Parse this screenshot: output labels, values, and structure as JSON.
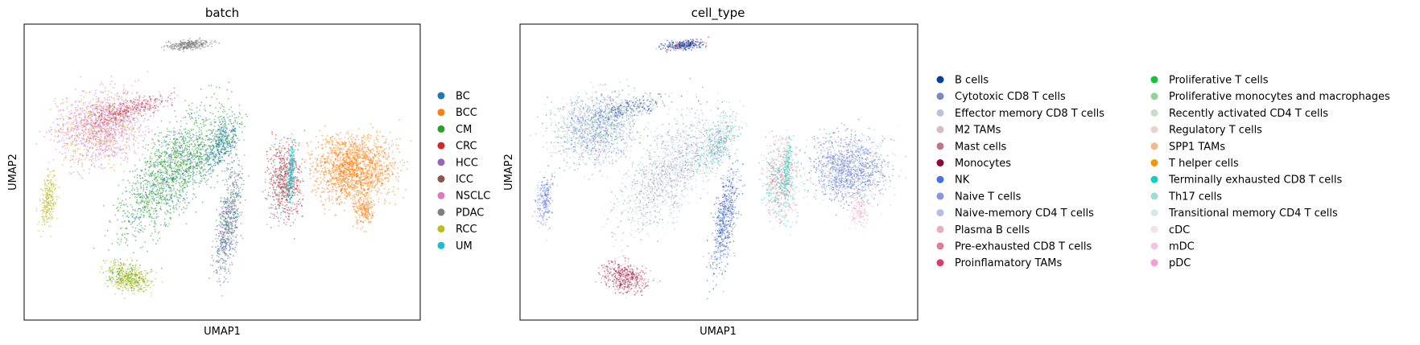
{
  "chart_data": [
    {
      "type": "scatter",
      "title": "batch",
      "xlabel": "UMAP1",
      "ylabel": "UMAP2",
      "grid": false,
      "ticks": false,
      "legend_position": "right",
      "series": [
        {
          "name": "BC",
          "color": "#1f77b4"
        },
        {
          "name": "BCC",
          "color": "#ff7f0e"
        },
        {
          "name": "CM",
          "color": "#2ca02c"
        },
        {
          "name": "CRC",
          "color": "#d62728"
        },
        {
          "name": "HCC",
          "color": "#9467bd"
        },
        {
          "name": "ICC",
          "color": "#8c564b"
        },
        {
          "name": "NSCLC",
          "color": "#e377c2"
        },
        {
          "name": "PDAC",
          "color": "#7f7f7f"
        },
        {
          "name": "RCC",
          "color": "#bcbd22"
        },
        {
          "name": "UM",
          "color": "#17becf"
        }
      ]
    },
    {
      "type": "scatter",
      "title": "cell_type",
      "xlabel": "UMAP1",
      "ylabel": "UMAP2",
      "grid": false,
      "ticks": false,
      "legend_position": "right",
      "series": [
        {
          "name": "B cells",
          "color": "#023fa5"
        },
        {
          "name": "Cytotoxic CD8 T cells",
          "color": "#7d87b9"
        },
        {
          "name": "Effector memory CD8 T cells",
          "color": "#bec1d4"
        },
        {
          "name": "M2 TAMs",
          "color": "#d6bcc0"
        },
        {
          "name": "Mast cells",
          "color": "#bb7784"
        },
        {
          "name": "Monocytes",
          "color": "#8e063b"
        },
        {
          "name": "NK",
          "color": "#4a6fe3"
        },
        {
          "name": "Naive T cells",
          "color": "#8595e1"
        },
        {
          "name": "Naive-memory CD4 T cells",
          "color": "#b5bbe3"
        },
        {
          "name": "Plasma B cells",
          "color": "#e6afb9"
        },
        {
          "name": "Pre-exhausted CD8 T cells",
          "color": "#e07b91"
        },
        {
          "name": "Proinflamatory TAMs",
          "color": "#d33f6a"
        },
        {
          "name": "Proliferative T cells",
          "color": "#11c638"
        },
        {
          "name": "Proliferative monocytes and macrophages",
          "color": "#8dd593"
        },
        {
          "name": "Recently activated CD4 T cells",
          "color": "#c6dec7"
        },
        {
          "name": "Regulatory T cells",
          "color": "#ead3c6"
        },
        {
          "name": "SPP1 TAMs",
          "color": "#f0b98d"
        },
        {
          "name": "T helper cells",
          "color": "#ef9708"
        },
        {
          "name": "Terminally exhausted CD8 T cells",
          "color": "#0fcfc0"
        },
        {
          "name": "Th17 cells",
          "color": "#9cded6"
        },
        {
          "name": "Transitional memory CD4 T cells",
          "color": "#d5eae7"
        },
        {
          "name": "cDC",
          "color": "#f3e1eb"
        },
        {
          "name": "mDC",
          "color": "#f6c4e1"
        },
        {
          "name": "pDC",
          "color": "#f79cd4"
        }
      ]
    }
  ]
}
